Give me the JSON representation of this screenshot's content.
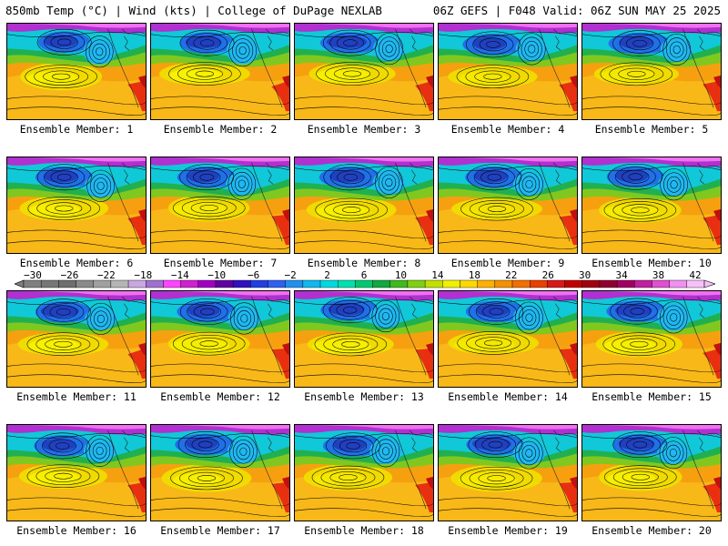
{
  "header": {
    "left": "850mb Temp (°C) | Wind (kts) | College of DuPage NEXLAB",
    "right": "06Z GEFS | F048 Valid: 06Z SUN MAY 25 2025"
  },
  "panels": [
    {
      "label": "Ensemble Member: 1"
    },
    {
      "label": "Ensemble Member: 2"
    },
    {
      "label": "Ensemble Member: 3"
    },
    {
      "label": "Ensemble Member: 4"
    },
    {
      "label": "Ensemble Member: 5"
    },
    {
      "label": "Ensemble Member: 6"
    },
    {
      "label": "Ensemble Member: 7"
    },
    {
      "label": "Ensemble Member: 8"
    },
    {
      "label": "Ensemble Member: 9"
    },
    {
      "label": "Ensemble Member: 10"
    },
    {
      "label": "Ensemble Member: 11"
    },
    {
      "label": "Ensemble Member: 12"
    },
    {
      "label": "Ensemble Member: 13"
    },
    {
      "label": "Ensemble Member: 14"
    },
    {
      "label": "Ensemble Member: 15"
    },
    {
      "label": "Ensemble Member: 16"
    },
    {
      "label": "Ensemble Member: 17"
    },
    {
      "label": "Ensemble Member: 18"
    },
    {
      "label": "Ensemble Member: 19"
    },
    {
      "label": "Ensemble Member: 20"
    }
  ],
  "colorbar": {
    "tick_labels": [
      "−30",
      "−26",
      "−22",
      "−18",
      "−14",
      "−10",
      "−6",
      "−2",
      "2",
      "6",
      "10",
      "14",
      "18",
      "22",
      "26",
      "30",
      "34",
      "38",
      "42"
    ],
    "colors": [
      "#808080",
      "#777777",
      "#6e6e6e",
      "#8a8a8a",
      "#a0a0a0",
      "#b5b5b5",
      "#c9a8e0",
      "#a070d0",
      "#ff44ff",
      "#d020d0",
      "#a000c0",
      "#6000a0",
      "#3010c0",
      "#2040e0",
      "#3060f0",
      "#2090f0",
      "#10b8f0",
      "#00d8e0",
      "#00e0b0",
      "#00c870",
      "#10a840",
      "#40b820",
      "#80d010",
      "#c0e000",
      "#f0f000",
      "#ffd800",
      "#ffb000",
      "#f59000",
      "#f07000",
      "#e84000",
      "#d81818",
      "#c00000",
      "#a00010",
      "#900030",
      "#a00060",
      "#c020a0",
      "#e050d0",
      "#f090f0",
      "#f8c0f8"
    ]
  }
}
